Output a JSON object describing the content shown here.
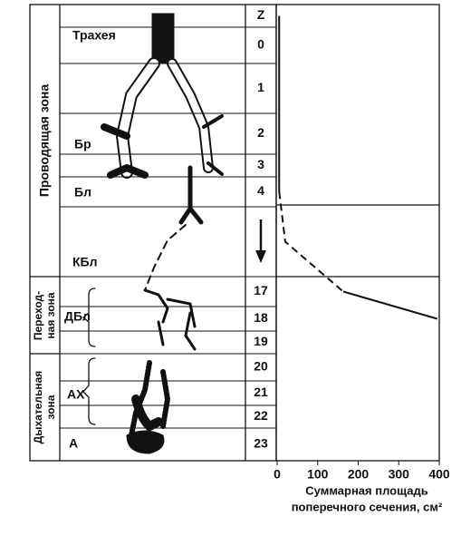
{
  "diagram": {
    "zones": [
      "Проводящая зона",
      [
        "Переход-",
        "ная зона"
      ],
      [
        "Дыхательная",
        "зона"
      ]
    ],
    "structures": [
      "Трахея",
      "Бр",
      "Бл",
      "КБл",
      "ДБл",
      "АХ",
      "А"
    ]
  },
  "chart_data": {
    "type": "line",
    "orientation": "horizontal",
    "categories": [
      "Z",
      "0",
      "1",
      "2",
      "3",
      "4",
      null,
      "17",
      "18",
      "19",
      "20",
      "21",
      "22",
      "23"
    ],
    "series": [
      {
        "style": "solid",
        "color": "#111",
        "values": [
          5,
          5,
          5,
          5,
          5,
          5,
          null,
          null,
          null,
          null,
          null,
          null,
          null,
          null
        ]
      },
      {
        "style": "dashed",
        "color": "#111",
        "values": [
          null,
          null,
          null,
          null,
          null,
          5,
          20,
          163,
          null,
          null,
          null,
          null,
          null,
          null
        ]
      },
      {
        "style": "solid",
        "color": "#111",
        "values": [
          null,
          null,
          null,
          null,
          null,
          null,
          null,
          163,
          395,
          null,
          null,
          null,
          null,
          null
        ]
      }
    ],
    "xlim": [
      0,
      400
    ],
    "xticks": [
      0,
      100,
      200,
      300,
      400
    ],
    "xlabel": [
      "Суммарная площадь",
      "поперечного сечения, см²"
    ]
  }
}
